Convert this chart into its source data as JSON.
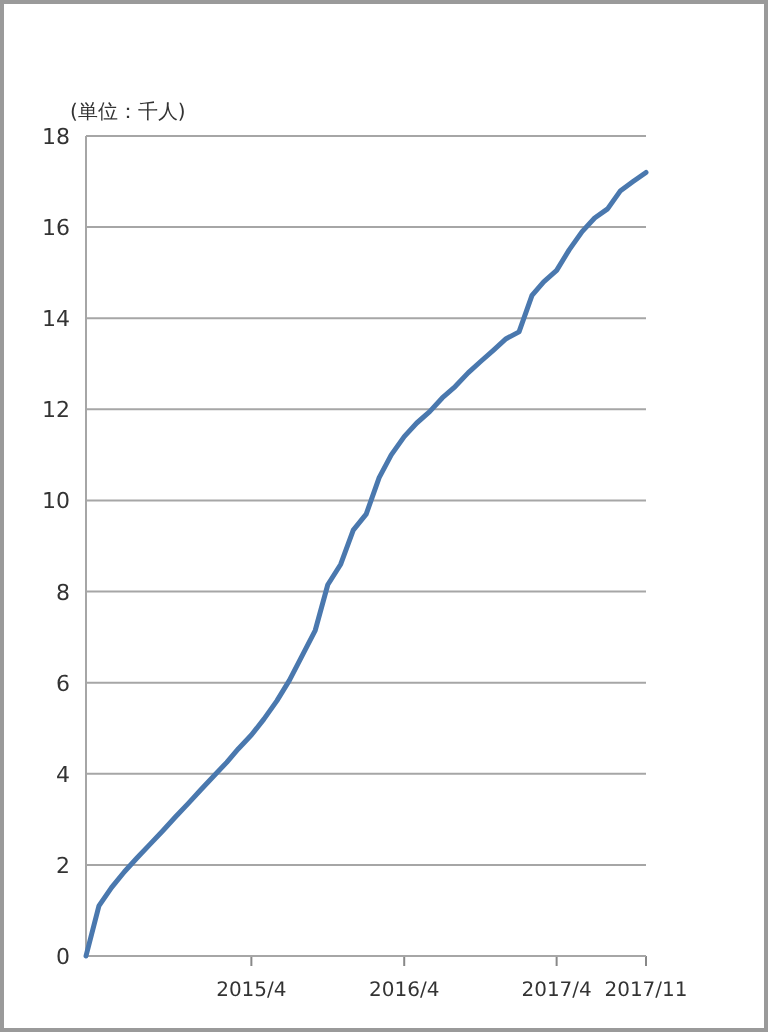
{
  "chart_data": {
    "type": "line",
    "ylabel": "(単位：千人)",
    "x": [
      "2014-03",
      "2014-04",
      "2014-05",
      "2014-06",
      "2014-07",
      "2014-08",
      "2014-09",
      "2014-10",
      "2014-11",
      "2014-12",
      "2015-01",
      "2015-02",
      "2015-03",
      "2015-04",
      "2015-05",
      "2015-06",
      "2015-07",
      "2015-08",
      "2015-09",
      "2015-10",
      "2015-11",
      "2015-12",
      "2016-01",
      "2016-02",
      "2016-03",
      "2016-04",
      "2016-05",
      "2016-06",
      "2016-07",
      "2016-08",
      "2016-09",
      "2016-10",
      "2016-11",
      "2016-12",
      "2017-01",
      "2017-02",
      "2017-03",
      "2017-04",
      "2017-05",
      "2017-06",
      "2017-07",
      "2017-08",
      "2017-09",
      "2017-10",
      "2017-11"
    ],
    "series": [
      {
        "color": "#4a78ae",
        "values": [
          0,
          1.1,
          1.5,
          1.85,
          2.15,
          2.45,
          2.75,
          3.05,
          3.35,
          3.65,
          3.95,
          4.25,
          4.55,
          4.85,
          5.2,
          5.6,
          6.05,
          6.6,
          7.15,
          8.15,
          8.6,
          9.35,
          9.7,
          10.5,
          11.0,
          11.4,
          11.7,
          11.95,
          12.25,
          12.5,
          12.8,
          13.05,
          13.3,
          13.55,
          13.7,
          14.5,
          14.8,
          15.05,
          15.5,
          15.9,
          16.2,
          16.4,
          16.8,
          17.0,
          17.2
        ]
      }
    ],
    "xlim": [
      "2014-03",
      "2017-11"
    ],
    "xticks": [
      {
        "value": "2015-04",
        "label": "2015/4"
      },
      {
        "value": "2016-04",
        "label": "2016/4"
      },
      {
        "value": "2017-04",
        "label": "2017/4"
      },
      {
        "value": "2017-11",
        "label": "2017/11"
      }
    ],
    "ylim": [
      0,
      18
    ],
    "yticks": [
      0,
      2,
      4,
      6,
      8,
      10,
      12,
      14,
      16,
      18
    ],
    "grid": "y",
    "marker": "none",
    "line_style": "solid"
  }
}
